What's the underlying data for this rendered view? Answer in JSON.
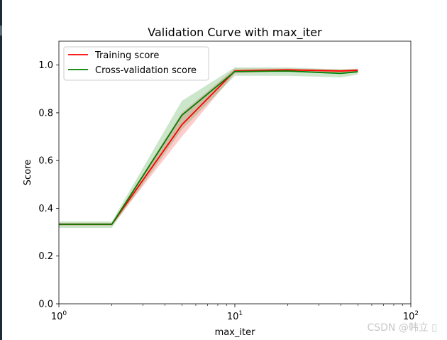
{
  "chart_data": {
    "type": "line",
    "title": "Validation Curve with max_iter",
    "xlabel": "max_iter",
    "ylabel": "Score",
    "xscale": "log",
    "xlim": [
      1,
      100
    ],
    "ylim": [
      0,
      1.1
    ],
    "x": [
      1,
      2,
      5,
      10,
      20,
      40,
      50
    ],
    "xticks": [
      {
        "value": 1,
        "base": "10",
        "exp": "0"
      },
      {
        "value": 10,
        "base": "10",
        "exp": "1"
      },
      {
        "value": 100,
        "base": "10",
        "exp": "2"
      }
    ],
    "yticks": [
      {
        "value": 0.0,
        "label": "0.0"
      },
      {
        "value": 0.2,
        "label": "0.2"
      },
      {
        "value": 0.4,
        "label": "0.4"
      },
      {
        "value": 0.6,
        "label": "0.6"
      },
      {
        "value": 0.8,
        "label": "0.8"
      },
      {
        "value": 1.0,
        "label": "1.0"
      }
    ],
    "legend_position": "top-left",
    "series": [
      {
        "name": "Training score",
        "color": "#ff0000",
        "values": [
          0.333,
          0.333,
          0.75,
          0.975,
          0.98,
          0.975,
          0.978
        ],
        "lower": [
          0.327,
          0.327,
          0.7,
          0.965,
          0.975,
          0.968,
          0.972
        ],
        "upper": [
          0.339,
          0.339,
          0.8,
          0.985,
          0.985,
          0.982,
          0.984
        ]
      },
      {
        "name": "Cross-validation score",
        "color": "#008000",
        "values": [
          0.333,
          0.333,
          0.79,
          0.973,
          0.975,
          0.965,
          0.972
        ],
        "lower": [
          0.318,
          0.318,
          0.73,
          0.955,
          0.955,
          0.948,
          0.96
        ],
        "upper": [
          0.345,
          0.345,
          0.85,
          0.99,
          0.99,
          0.982,
          0.985
        ]
      }
    ]
  },
  "watermark": "CSDN @韩立  ▯"
}
